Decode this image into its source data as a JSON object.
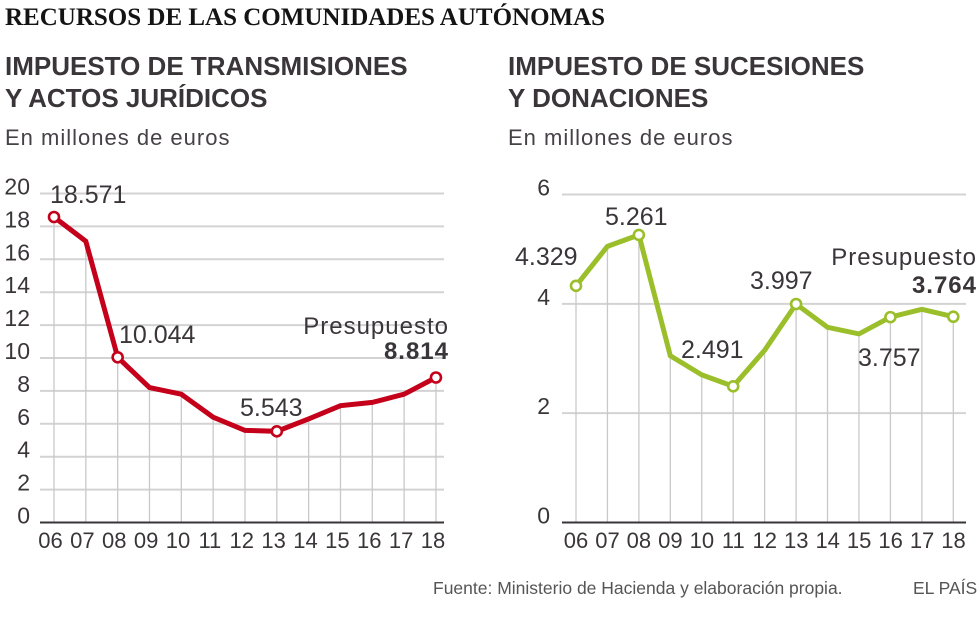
{
  "header": {
    "title": "RECURSOS DE LAS COMUNIDADES AUTÓNOMAS"
  },
  "chart_data": [
    {
      "type": "line",
      "title": "IMPUESTO DE TRANSMISIONES Y ACTOS JURÍDICOS",
      "title_lines": [
        "IMPUESTO DE TRANSMISIONES",
        "Y ACTOS JURÍDICOS"
      ],
      "subtitle": "En millones de euros",
      "xlabel": "",
      "ylabel": "",
      "categories": [
        "06",
        "07",
        "08",
        "09",
        "10",
        "11",
        "12",
        "13",
        "14",
        "15",
        "16",
        "17",
        "18"
      ],
      "series": [
        {
          "name": "Impuesto de Transmisiones y Actos Jurídicos",
          "color": "#c4001a",
          "values": [
            18.571,
            17.1,
            10.044,
            8.2,
            7.8,
            6.4,
            5.6,
            5.543,
            6.3,
            7.1,
            7.3,
            7.8,
            8.814
          ]
        }
      ],
      "ylim": [
        0,
        20
      ],
      "yticks": [
        0,
        2,
        4,
        6,
        8,
        10,
        12,
        14,
        16,
        18,
        20
      ],
      "grid": true,
      "legend": "none",
      "annotations": [
        {
          "index": 0,
          "text": "18.571"
        },
        {
          "index": 2,
          "text": "10.044"
        },
        {
          "index": 7,
          "text": "5.543"
        },
        {
          "index": 12,
          "label": "Presupuesto",
          "text": "8.814"
        }
      ]
    },
    {
      "type": "line",
      "title": "IMPUESTO DE SUCESIONES Y DONACIONES",
      "title_lines": [
        "IMPUESTO DE SUCESIONES",
        "Y DONACIONES"
      ],
      "subtitle": "En millones de euros",
      "xlabel": "",
      "ylabel": "",
      "categories": [
        "06",
        "07",
        "08",
        "09",
        "10",
        "11",
        "12",
        "13",
        "14",
        "15",
        "16",
        "17",
        "18"
      ],
      "series": [
        {
          "name": "Impuesto de Sucesiones y Donaciones",
          "color": "#9bbf2a",
          "values": [
            4.329,
            5.05,
            5.261,
            3.05,
            2.7,
            2.491,
            3.15,
            3.997,
            3.57,
            3.45,
            3.757,
            3.9,
            3.764
          ]
        }
      ],
      "ylim": [
        0,
        6
      ],
      "yticks": [
        0,
        2,
        4,
        6
      ],
      "grid": true,
      "legend": "none",
      "annotations": [
        {
          "index": 0,
          "text": "4.329"
        },
        {
          "index": 2,
          "text": "5.261"
        },
        {
          "index": 5,
          "text": "2.491"
        },
        {
          "index": 7,
          "text": "3.997"
        },
        {
          "index": 10,
          "text": "3.757"
        },
        {
          "index": 12,
          "label": "Presupuesto",
          "text": "3.764"
        }
      ]
    }
  ],
  "footer": {
    "source": "Fuente: Ministerio de Hacienda y elaboración propia.",
    "brand": "EL PAÍS"
  }
}
